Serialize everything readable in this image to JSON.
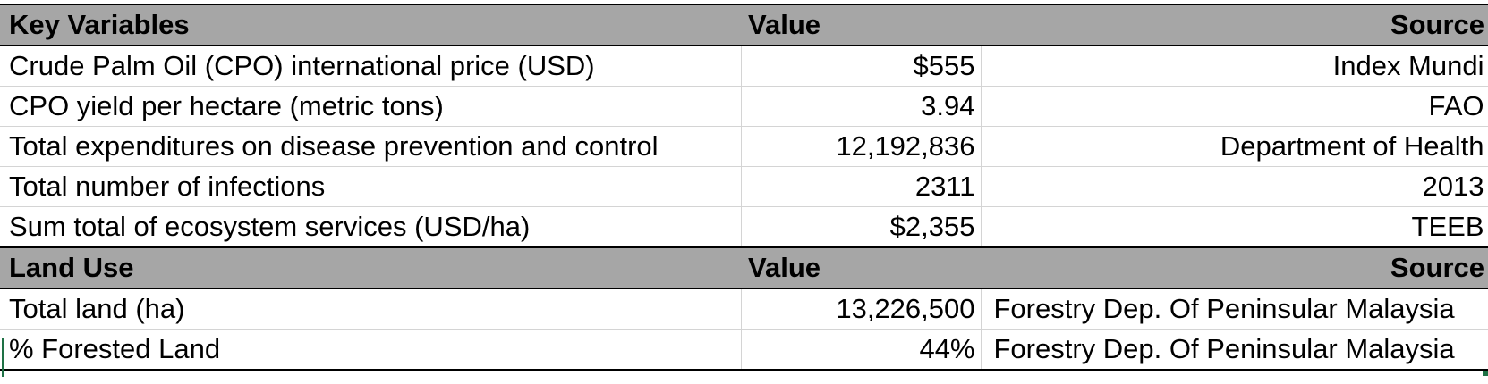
{
  "sections": [
    {
      "header": {
        "label": "Key Variables",
        "value": "Value",
        "source": "Source"
      },
      "rows": [
        {
          "label": "Crude Palm Oil (CPO) international price (USD)",
          "value": "$555",
          "source": "Index Mundi"
        },
        {
          "label": "CPO yield per hectare (metric tons)",
          "value": "3.94",
          "source": "FAO"
        },
        {
          "label": "Total expenditures on disease prevention and control",
          "value": "12,192,836",
          "source": "Department of Health"
        },
        {
          "label": "Total number of infections",
          "value": "2311",
          "source": "2013"
        },
        {
          "label": "Sum total of ecosystem services (USD/ha)",
          "value": "$2,355",
          "source": "TEEB"
        }
      ]
    },
    {
      "header": {
        "label": "Land Use",
        "value": "Value",
        "source": "Source"
      },
      "rows": [
        {
          "label": "Total land (ha)",
          "value": "13,226,500",
          "source": "Forestry Dep. Of Peninsular Malaysia"
        },
        {
          "label": "% Forested Land",
          "value": "44%",
          "source": "Forestry Dep. Of Peninsular Malaysia"
        }
      ]
    }
  ]
}
